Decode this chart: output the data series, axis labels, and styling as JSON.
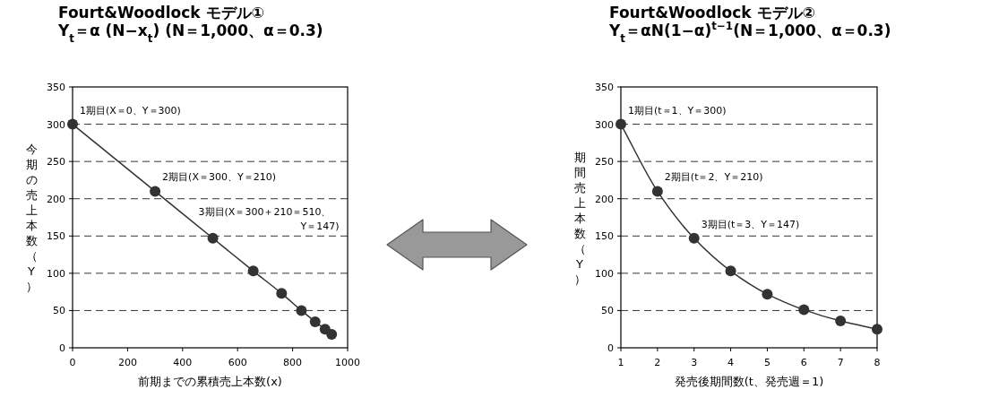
{
  "chart_data": [
    {
      "type": "line",
      "title": "Fourt&Woodlock モデル①",
      "subtitle": "Y$_{t}$＝α (N−x$_{t}$) (N＝1,000、α＝0.3)",
      "xlabel": "前期までの累積売上本数(x)",
      "ylabel": "今期の売上本数（Y）",
      "x": [
        0,
        300,
        510,
        657,
        760,
        832,
        882,
        918,
        942
      ],
      "series": [
        {
          "color": "#333333",
          "values": [
            300,
            210,
            147,
            103,
            73,
            50,
            35,
            25,
            18
          ]
        }
      ],
      "xlim": [
        0,
        1000
      ],
      "xticks": [
        0,
        200,
        400,
        600,
        800,
        1000
      ],
      "ylim": [
        0,
        350
      ],
      "yticks": [
        0,
        50,
        100,
        150,
        200,
        250,
        300,
        350
      ],
      "grid": "y",
      "marker": "circle",
      "line_style": "solid",
      "annotations": [
        {
          "text": "1期目(X＝0、Y＝300)",
          "x": 0,
          "y": 300
        },
        {
          "text": "2期目(X＝300、Y＝210)",
          "x": 300,
          "y": 210
        },
        {
          "text": "3期目(X＝300＋210＝510、Y＝147)",
          "x": 510,
          "y": 147
        }
      ]
    },
    {
      "type": "line",
      "title": "Fourt&Woodlock モデル②",
      "subtitle": "Y$_{t}$＝αN(1−α)$^{t−1}$(N＝1,000、α＝0.3)",
      "xlabel": "発売後期間数(t、発売週＝1)",
      "ylabel": "期間売上本数（Y）",
      "x": [
        1,
        2,
        3,
        4,
        5,
        6,
        7,
        8
      ],
      "series": [
        {
          "color": "#333333",
          "values": [
            300,
            210,
            147,
            103,
            72,
            51,
            36,
            25
          ]
        }
      ],
      "xlim": [
        1,
        8
      ],
      "xticks": [
        1,
        2,
        3,
        4,
        5,
        6,
        7,
        8
      ],
      "ylim": [
        0,
        350
      ],
      "yticks": [
        0,
        50,
        100,
        150,
        200,
        250,
        300,
        350
      ],
      "grid": "y",
      "marker": "circle",
      "line_style": "solid",
      "annotations": [
        {
          "text": "1期目(t＝1、Y＝300)",
          "x": 1,
          "y": 300
        },
        {
          "text": "2期目(t＝2、Y＝210)",
          "x": 2,
          "y": 210
        },
        {
          "text": "3期目(t＝3、Y＝147)",
          "x": 3,
          "y": 147
        }
      ]
    }
  ]
}
